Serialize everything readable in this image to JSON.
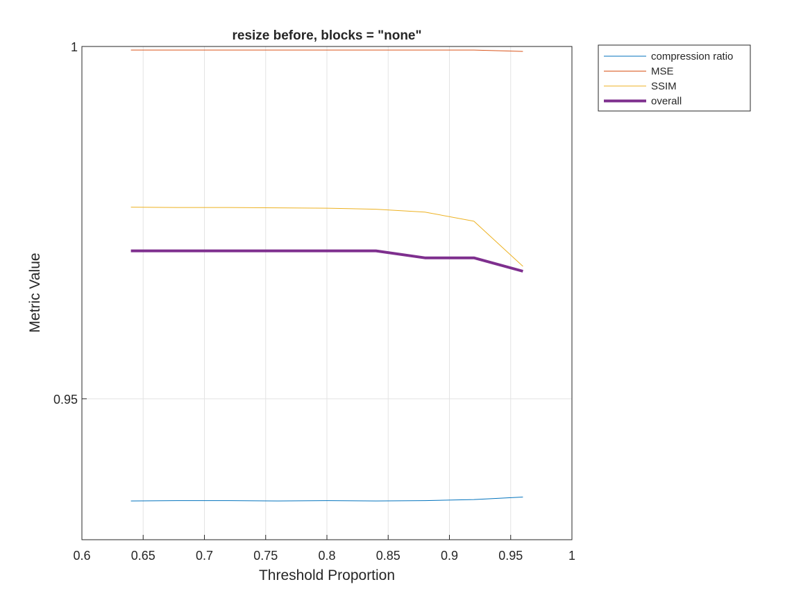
{
  "chart_data": {
    "type": "line",
    "title": "resize before, blocks = \"none\"",
    "xlabel": "Threshold Proportion",
    "ylabel": "Metric Value",
    "xlim": [
      0.6,
      1.0
    ],
    "ylim": [
      0.93,
      1.0
    ],
    "xticks": [
      0.6,
      0.65,
      0.7,
      0.75,
      0.8,
      0.85,
      0.9,
      0.95,
      1.0
    ],
    "xtick_labels": [
      "0.6",
      "0.65",
      "0.7",
      "0.75",
      "0.8",
      "0.85",
      "0.9",
      "0.95",
      "1"
    ],
    "yticks": [
      0.95,
      1.0
    ],
    "ytick_labels": [
      "0.95",
      "1"
    ],
    "grid": true,
    "legend_position": "outside top-right",
    "x": [
      0.64,
      0.68,
      0.72,
      0.76,
      0.8,
      0.84,
      0.88,
      0.92,
      0.96
    ],
    "series": [
      {
        "name": "compression ratio",
        "color": "#0072BD",
        "width": 1,
        "values": [
          0.9355,
          0.93555,
          0.93555,
          0.9355,
          0.93555,
          0.9355,
          0.93555,
          0.9357,
          0.93605
        ]
      },
      {
        "name": "MSE",
        "color": "#D95319",
        "width": 1,
        "values": [
          0.9995,
          0.9995,
          0.9995,
          0.9995,
          0.9995,
          0.9995,
          0.9995,
          0.9995,
          0.9993
        ]
      },
      {
        "name": "SSIM",
        "color": "#EDB120",
        "width": 1,
        "values": [
          0.9772,
          0.97715,
          0.97715,
          0.9771,
          0.97705,
          0.9769,
          0.9765,
          0.9752,
          0.9688
        ]
      },
      {
        "name": "overall",
        "color": "#7E2F8E",
        "width": 4,
        "values": [
          0.971,
          0.971,
          0.971,
          0.971,
          0.971,
          0.971,
          0.97,
          0.97,
          0.9681
        ]
      }
    ]
  }
}
